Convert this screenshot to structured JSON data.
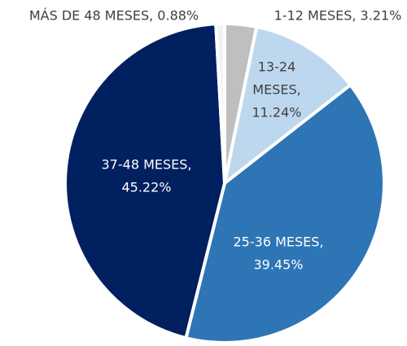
{
  "chart_data": {
    "type": "pie",
    "categories": [
      "1-12 MESES",
      "13-24 MESES",
      "25-36 MESES",
      "37-48 MESES",
      "MÁS DE 48 MESES"
    ],
    "values": [
      3.21,
      11.24,
      39.45,
      45.22,
      0.88
    ],
    "value_labels": [
      [
        "1-12 MESES, 3.21%"
      ],
      [
        "13-24",
        "MESES,",
        "11.24%"
      ],
      [
        "25-36 MESES,",
        "39.45%"
      ],
      [
        "37-48 MESES,",
        "45.22%"
      ],
      [
        "MÁS DE 48 MESES, 0.88%"
      ]
    ],
    "colors": [
      "#bfbfbf",
      "#bdd7ee",
      "#2e75b6",
      "#002060",
      "#f2f2f2"
    ]
  }
}
